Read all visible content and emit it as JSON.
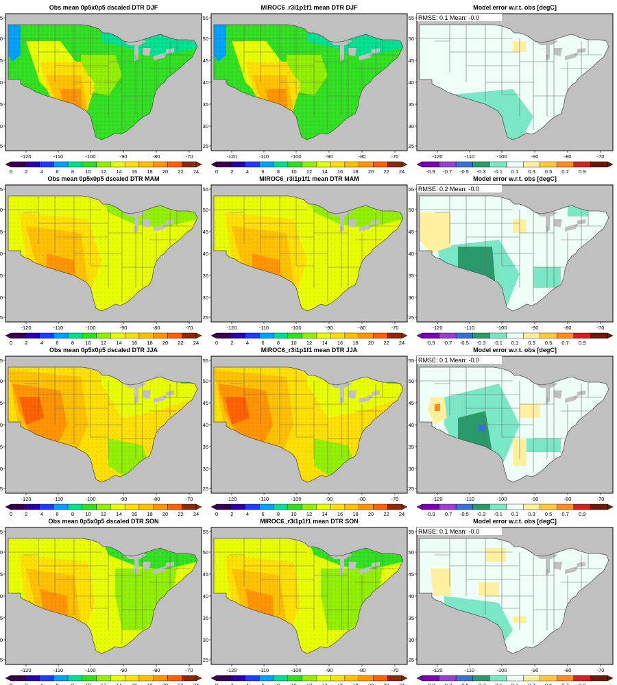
{
  "figure": {
    "rows": [
      {
        "season": "DJF",
        "titles": [
          "Obs mean 0p5x0p5 dscaled DTR DJF",
          "MIROC6_r3i1p1f1 mean DTR DJF",
          "Model error w.r.t. obs [degC]"
        ],
        "stats": "RMSE: 0.1  Mean: -0.0"
      },
      {
        "season": "MAM",
        "titles": [
          "Obs mean 0p5x0p5 dscaled DTR MAM",
          "MIROC6_r3i1p1f1 mean DTR MAM",
          "Model error w.r.t. obs [degC]"
        ],
        "stats": "RMSE: 0.2  Mean: -0.0"
      },
      {
        "season": "JJA",
        "titles": [
          "Obs mean 0p5x0p5 dscaled DTR JJA",
          "MIROC6_r3i1p1f1 mean DTR JJA",
          "Model error w.r.t. obs [degC]"
        ],
        "stats": "RMSE: 0.1  Mean: -0.0"
      },
      {
        "season": "SON",
        "titles": [
          "Obs mean 0p5x0p5 dscaled DTR SON",
          "MIROC6_r3i1p1f1 mean DTR SON",
          "Model error w.r.t. obs [degC]"
        ],
        "stats": "RMSE: 0.1  Mean: -0.0"
      }
    ]
  },
  "chart_data": {
    "type": "heatmap",
    "map_extent": {
      "lon": [
        -125,
        -67
      ],
      "lat": [
        24.5,
        55.5
      ]
    },
    "xticks": [
      "-120",
      "-110",
      "-100",
      "-90",
      "-80",
      "-70"
    ],
    "yticks": [
      "55",
      "50",
      "45",
      "40",
      "35",
      "30",
      "25"
    ],
    "colorbar_dtr": {
      "labels": [
        "0",
        "2",
        "4",
        "6",
        "8",
        "10",
        "12",
        "14",
        "16",
        "18",
        "20",
        "22",
        "24"
      ],
      "colors": [
        "#3a0050",
        "#2a00a8",
        "#1e3cff",
        "#00a0ff",
        "#00e090",
        "#30e020",
        "#90f000",
        "#e8ff00",
        "#ffe000",
        "#ffc000",
        "#ff9400",
        "#ff6000",
        "#8a2a0a"
      ]
    },
    "colorbar_error": {
      "labels": [
        "-0.9",
        "-0.7",
        "-0.5",
        "-0.3",
        "-0.1",
        "0.1",
        "0.3",
        "0.5",
        "0.7",
        "0.9"
      ],
      "colors": [
        "#7a00b4",
        "#9a40d0",
        "#3a70d0",
        "#2a9a6a",
        "#7ae8c4",
        "#eefff8",
        "#fff0a0",
        "#ffc840",
        "#ff8c20",
        "#d02020",
        "#6a1a0a"
      ]
    },
    "missing_color": "#c0c0c0"
  }
}
